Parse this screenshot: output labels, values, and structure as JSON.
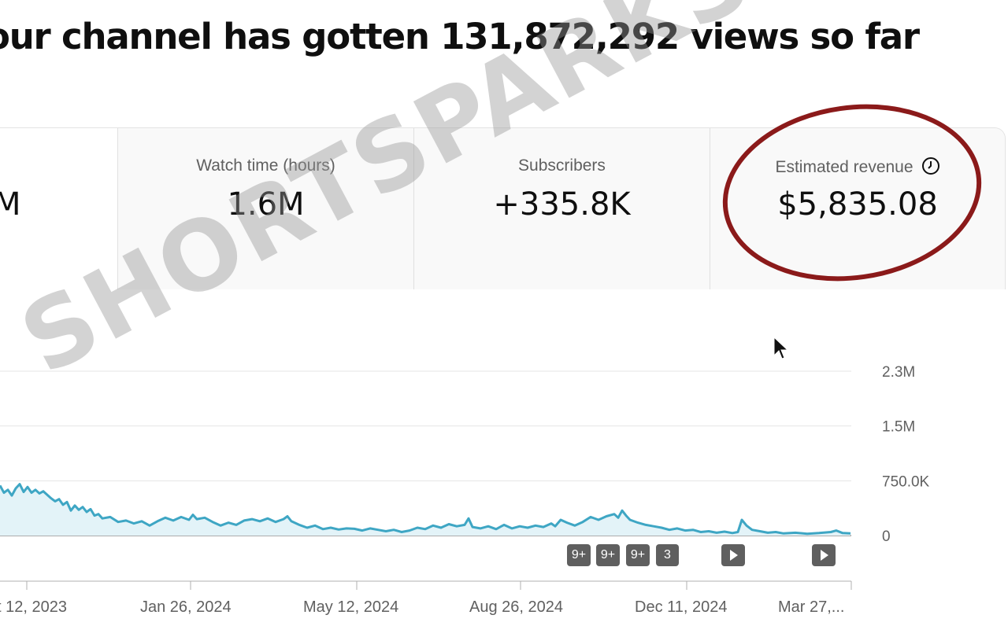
{
  "headline": "our channel has gotten 131,872,292 views so far",
  "metrics": [
    {
      "label": "",
      "value": "M"
    },
    {
      "label": "Watch time (hours)",
      "value": "1.6M"
    },
    {
      "label": "Subscribers",
      "value": "+335.8K"
    },
    {
      "label": "Estimated revenue",
      "value": "$5,835.08",
      "icon": "clock-icon"
    }
  ],
  "annotation_markers": [
    "9+",
    "9+",
    "9+",
    "3"
  ],
  "watermark": "SHORTSPARKS.COM",
  "colors": {
    "line": "#3ea6c4",
    "fill": "#e3f3f8",
    "highlight_circle": "#8b1a1a"
  },
  "chart_data": {
    "type": "area",
    "x_ticks": [
      "t 12, 2023",
      "Jan 26, 2024",
      "May 12, 2024",
      "Aug 26, 2024",
      "Dec 11, 2024",
      "Mar 27,..."
    ],
    "y_ticks": [
      "2.3M",
      "1.5M",
      "750.0K",
      "0"
    ],
    "ylim": [
      0,
      2300000
    ],
    "grid": true,
    "series": [
      {
        "values": [
          [
            0,
            700000
          ],
          [
            5,
            600000
          ],
          [
            10,
            640000
          ],
          [
            15,
            560000
          ],
          [
            20,
            660000
          ],
          [
            25,
            720000
          ],
          [
            30,
            610000
          ],
          [
            35,
            680000
          ],
          [
            40,
            600000
          ],
          [
            45,
            640000
          ],
          [
            50,
            590000
          ],
          [
            55,
            620000
          ],
          [
            60,
            570000
          ],
          [
            65,
            520000
          ],
          [
            70,
            480000
          ],
          [
            75,
            510000
          ],
          [
            80,
            430000
          ],
          [
            85,
            470000
          ],
          [
            90,
            350000
          ],
          [
            95,
            420000
          ],
          [
            100,
            360000
          ],
          [
            105,
            400000
          ],
          [
            110,
            330000
          ],
          [
            115,
            370000
          ],
          [
            120,
            280000
          ],
          [
            125,
            300000
          ],
          [
            130,
            240000
          ],
          [
            140,
            260000
          ],
          [
            150,
            190000
          ],
          [
            160,
            210000
          ],
          [
            170,
            170000
          ],
          [
            180,
            200000
          ],
          [
            190,
            140000
          ],
          [
            200,
            200000
          ],
          [
            210,
            250000
          ],
          [
            220,
            210000
          ],
          [
            230,
            260000
          ],
          [
            240,
            220000
          ],
          [
            245,
            290000
          ],
          [
            250,
            230000
          ],
          [
            260,
            250000
          ],
          [
            270,
            190000
          ],
          [
            280,
            140000
          ],
          [
            290,
            180000
          ],
          [
            300,
            150000
          ],
          [
            310,
            210000
          ],
          [
            320,
            230000
          ],
          [
            330,
            200000
          ],
          [
            340,
            240000
          ],
          [
            350,
            190000
          ],
          [
            360,
            230000
          ],
          [
            365,
            270000
          ],
          [
            370,
            200000
          ],
          [
            380,
            150000
          ],
          [
            390,
            110000
          ],
          [
            400,
            140000
          ],
          [
            410,
            90000
          ],
          [
            420,
            110000
          ],
          [
            430,
            85000
          ],
          [
            440,
            100000
          ],
          [
            450,
            95000
          ],
          [
            460,
            70000
          ],
          [
            470,
            100000
          ],
          [
            480,
            80000
          ],
          [
            490,
            60000
          ],
          [
            500,
            80000
          ],
          [
            510,
            50000
          ],
          [
            520,
            70000
          ],
          [
            530,
            110000
          ],
          [
            540,
            90000
          ],
          [
            550,
            140000
          ],
          [
            560,
            110000
          ],
          [
            570,
            160000
          ],
          [
            580,
            130000
          ],
          [
            590,
            150000
          ],
          [
            595,
            240000
          ],
          [
            600,
            120000
          ],
          [
            610,
            100000
          ],
          [
            620,
            130000
          ],
          [
            630,
            90000
          ],
          [
            640,
            150000
          ],
          [
            650,
            100000
          ],
          [
            660,
            130000
          ],
          [
            670,
            110000
          ],
          [
            680,
            140000
          ],
          [
            690,
            120000
          ],
          [
            700,
            170000
          ],
          [
            705,
            130000
          ],
          [
            712,
            220000
          ],
          [
            720,
            180000
          ],
          [
            730,
            140000
          ],
          [
            740,
            190000
          ],
          [
            750,
            260000
          ],
          [
            760,
            220000
          ],
          [
            770,
            270000
          ],
          [
            780,
            300000
          ],
          [
            785,
            250000
          ],
          [
            790,
            350000
          ],
          [
            795,
            280000
          ],
          [
            800,
            220000
          ],
          [
            810,
            180000
          ],
          [
            820,
            150000
          ],
          [
            830,
            130000
          ],
          [
            840,
            110000
          ],
          [
            850,
            80000
          ],
          [
            860,
            100000
          ],
          [
            870,
            70000
          ],
          [
            880,
            80000
          ],
          [
            890,
            50000
          ],
          [
            900,
            60000
          ],
          [
            910,
            40000
          ],
          [
            920,
            55000
          ],
          [
            930,
            35000
          ],
          [
            937,
            50000
          ],
          [
            942,
            220000
          ],
          [
            948,
            140000
          ],
          [
            955,
            80000
          ],
          [
            965,
            60000
          ],
          [
            975,
            40000
          ],
          [
            985,
            50000
          ],
          [
            995,
            30000
          ],
          [
            1010,
            40000
          ],
          [
            1025,
            25000
          ],
          [
            1040,
            35000
          ],
          [
            1055,
            50000
          ],
          [
            1062,
            70000
          ],
          [
            1070,
            35000
          ],
          [
            1080,
            30000
          ]
        ]
      }
    ]
  }
}
